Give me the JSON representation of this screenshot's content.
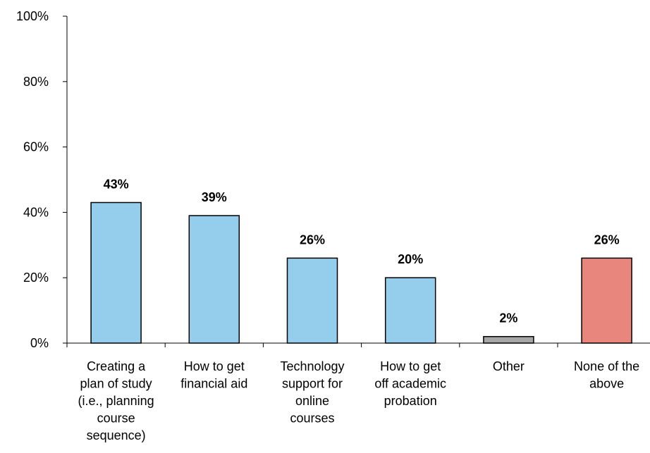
{
  "colors": {
    "default_bar": "#95CDED",
    "other_bar": "#A6A6A6",
    "none_bar": "#E8857D",
    "bar_stroke": "#000000",
    "axis": "#000000"
  },
  "chart_data": {
    "type": "bar",
    "title": "",
    "xlabel": "",
    "ylabel": "",
    "ylim": [
      0,
      100
    ],
    "y_ticks": [
      0,
      20,
      40,
      60,
      80,
      100
    ],
    "y_tick_labels": [
      "0%",
      "20%",
      "40%",
      "60%",
      "80%",
      "100%"
    ],
    "grid": false,
    "categories": [
      [
        "Creating a",
        "plan of study",
        "(i.e., planning",
        "course",
        "sequence)"
      ],
      [
        "How to get",
        "financial aid"
      ],
      [
        "Technology",
        "support for",
        "online",
        "courses"
      ],
      [
        "How to get",
        "off academic",
        "probation"
      ],
      [
        "Other"
      ],
      [
        "None of the",
        "above"
      ]
    ],
    "values": [
      43,
      39,
      26,
      20,
      2,
      26
    ],
    "data_labels": [
      "43%",
      "39%",
      "26%",
      "20%",
      "2%",
      "26%"
    ],
    "bar_colors": [
      "#95CDED",
      "#95CDED",
      "#95CDED",
      "#95CDED",
      "#A6A6A6",
      "#E8857D"
    ]
  }
}
